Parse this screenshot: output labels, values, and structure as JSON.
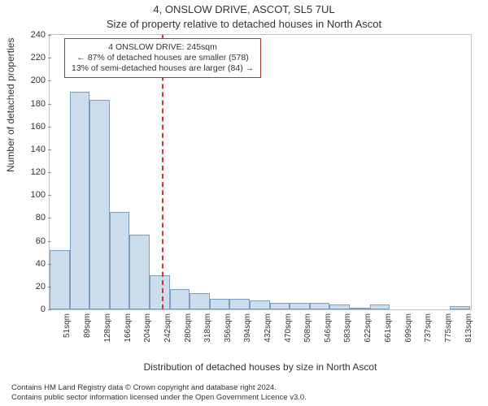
{
  "title_line1": "4, ONSLOW DRIVE, ASCOT, SL5 7UL",
  "title_line2": "Size of property relative to detached houses in North Ascot",
  "chart": {
    "type": "histogram",
    "ylabel": "Number of detached properties",
    "xlabel": "Distribution of detached houses by size in North Ascot",
    "xlim": [
      32,
      832
    ],
    "ylim": [
      0,
      240
    ],
    "ytick_step": 20,
    "bar_fill": "#CCDDEE",
    "bar_stroke": "#7E9EC0",
    "background_color": "#FFFFFF",
    "border_color": "#C0C0C0",
    "axis_fontsize": 11,
    "label_fontsize": 12,
    "title_fontsize": 13,
    "reference_line": {
      "x": 245,
      "color": "#D93030",
      "dash": true,
      "width": 2
    },
    "annotation": {
      "lines": [
        "4 ONSLOW DRIVE: 245sqm",
        "← 87% of detached houses are smaller (578)",
        "13% of semi-detached houses are larger (84) →"
      ],
      "border_color": "#C03030",
      "fontsize": 10.5
    },
    "x_tick_labels": [
      "51sqm",
      "89sqm",
      "128sqm",
      "166sqm",
      "204sqm",
      "242sqm",
      "280sqm",
      "318sqm",
      "356sqm",
      "394sqm",
      "432sqm",
      "470sqm",
      "508sqm",
      "546sqm",
      "583sqm",
      "622sqm",
      "661sqm",
      "699sqm",
      "737sqm",
      "775sqm",
      "813sqm"
    ],
    "x_tick_positions": [
      51,
      89,
      128,
      166,
      204,
      242,
      280,
      318,
      356,
      394,
      432,
      470,
      508,
      546,
      583,
      622,
      661,
      699,
      737,
      775,
      813
    ],
    "bins": [
      {
        "start": 32,
        "end": 70,
        "count": 52
      },
      {
        "start": 70,
        "end": 108,
        "count": 190
      },
      {
        "start": 108,
        "end": 146,
        "count": 183
      },
      {
        "start": 146,
        "end": 184,
        "count": 85
      },
      {
        "start": 184,
        "end": 222,
        "count": 65
      },
      {
        "start": 222,
        "end": 260,
        "count": 30
      },
      {
        "start": 260,
        "end": 298,
        "count": 18
      },
      {
        "start": 298,
        "end": 336,
        "count": 14
      },
      {
        "start": 336,
        "end": 374,
        "count": 9
      },
      {
        "start": 374,
        "end": 412,
        "count": 9
      },
      {
        "start": 412,
        "end": 450,
        "count": 8
      },
      {
        "start": 450,
        "end": 488,
        "count": 6
      },
      {
        "start": 488,
        "end": 526,
        "count": 6
      },
      {
        "start": 526,
        "end": 564,
        "count": 6
      },
      {
        "start": 564,
        "end": 602,
        "count": 4
      },
      {
        "start": 602,
        "end": 640,
        "count": 1
      },
      {
        "start": 640,
        "end": 678,
        "count": 4
      },
      {
        "start": 678,
        "end": 716,
        "count": 0
      },
      {
        "start": 716,
        "end": 754,
        "count": 0
      },
      {
        "start": 754,
        "end": 792,
        "count": 0
      },
      {
        "start": 792,
        "end": 830,
        "count": 3
      }
    ]
  },
  "footer_line1": "Contains HM Land Registry data © Crown copyright and database right 2024.",
  "footer_line2": "Contains public sector information licensed under the Open Government Licence v3.0."
}
